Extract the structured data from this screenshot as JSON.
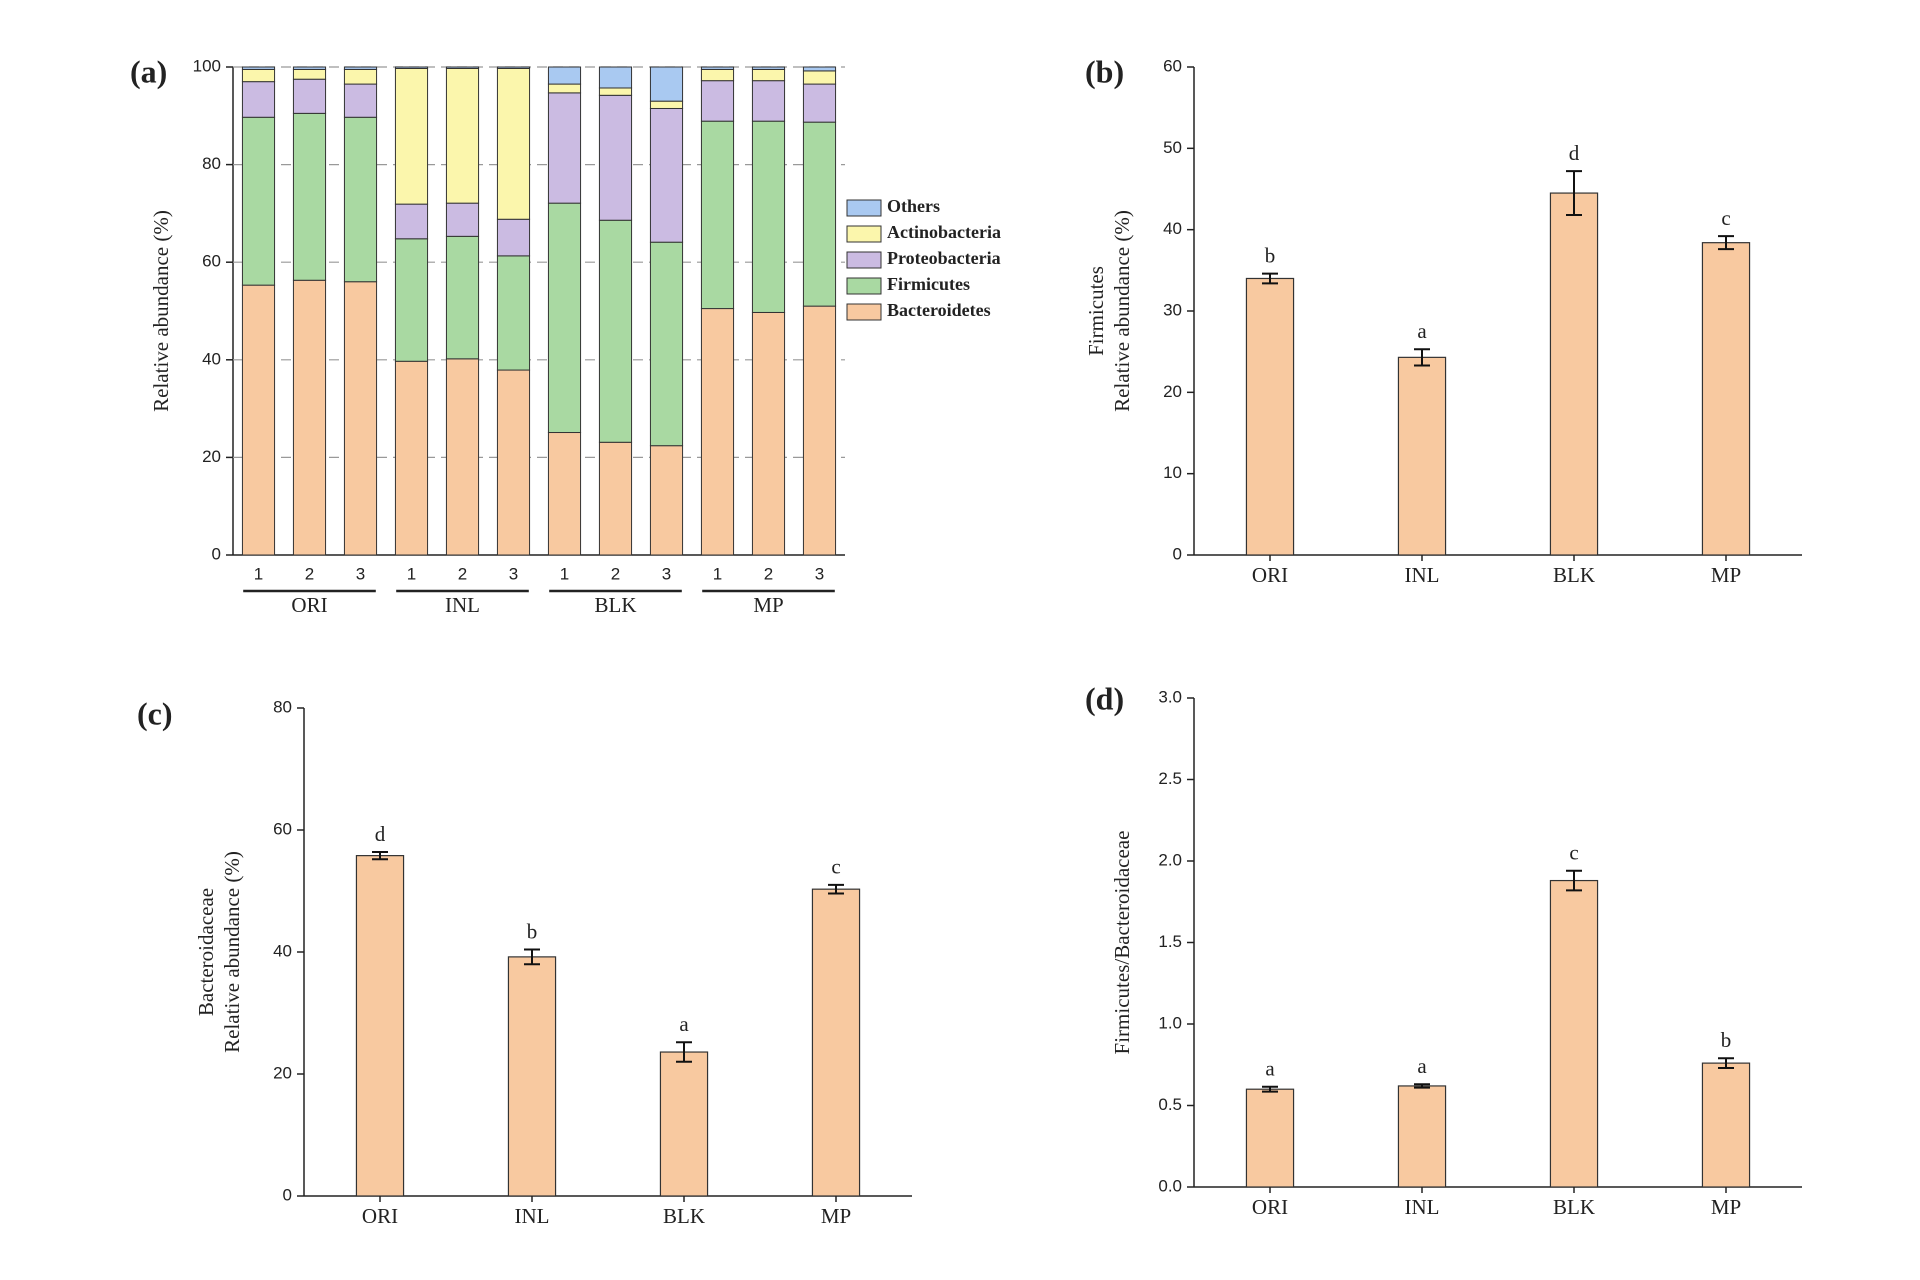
{
  "chart_data": [
    {
      "type": "stacked_bar",
      "panel": "(a)",
      "ylabel": "Relative abundance (%)",
      "categories": [
        "1",
        "2",
        "3",
        "1",
        "2",
        "3",
        "1",
        "2",
        "3",
        "1",
        "2",
        "3"
      ],
      "groups": [
        "ORI",
        "INL",
        "BLK",
        "MP"
      ],
      "series": [
        {
          "name": "Bacteroidetes",
          "color": "#f8c9a0",
          "values": [
            55.3,
            56.3,
            56,
            39.7,
            40.2,
            37.9,
            25.1,
            23.1,
            22.4,
            50.5,
            49.7,
            51
          ]
        },
        {
          "name": "Firmicutes",
          "color": "#a9d9a2",
          "values": [
            34.4,
            34.2,
            33.7,
            25.1,
            25.1,
            23.4,
            47,
            45.5,
            41.7,
            38.4,
            39.2,
            37.7
          ]
        },
        {
          "name": "Proteobacteria",
          "color": "#cbbbe2",
          "values": [
            7.3,
            7,
            6.8,
            7.1,
            6.8,
            7.5,
            22.6,
            25.6,
            27.4,
            8.3,
            8.3,
            7.8
          ]
        },
        {
          "name": "Actinobacteria",
          "color": "#fbf6ac",
          "values": [
            2.5,
            2,
            3,
            27.8,
            27.6,
            30.9,
            1.8,
            1.5,
            1.5,
            2.3,
            2.3,
            2.7
          ]
        },
        {
          "name": "Others",
          "color": "#a9c9f1",
          "values": [
            0.5,
            0.5,
            0.5,
            0.3,
            0.3,
            0.3,
            3.5,
            4.3,
            7,
            0.5,
            0.5,
            0.8
          ]
        }
      ],
      "ylim": [
        0,
        100
      ],
      "yticks": [
        0,
        20,
        40,
        60,
        80,
        100
      ],
      "grid": true,
      "legend": "right"
    },
    {
      "type": "bar",
      "panel": "(b)",
      "ylabel": [
        "Firmicutes",
        "Relative abundance (%)"
      ],
      "categories": [
        "ORI",
        "INL",
        "BLK",
        "MP"
      ],
      "values": [
        34,
        24.3,
        44.5,
        38.4
      ],
      "errors": [
        0.6,
        1,
        2.7,
        0.8
      ],
      "letters": [
        "b",
        "a",
        "d",
        "c"
      ],
      "color": "#f8c9a0",
      "ylim": [
        0,
        60
      ],
      "yticks": [
        0,
        10,
        20,
        30,
        40,
        50,
        60
      ],
      "grid": false
    },
    {
      "type": "bar",
      "panel": "(c)",
      "ylabel": [
        "Bacteroidaceae",
        "Relative abundance (%)"
      ],
      "categories": [
        "ORI",
        "INL",
        "BLK",
        "MP"
      ],
      "values": [
        55.8,
        39.2,
        23.6,
        50.3
      ],
      "errors": [
        0.6,
        1.2,
        1.6,
        0.7
      ],
      "letters": [
        "d",
        "b",
        "a",
        "c"
      ],
      "color": "#f8c9a0",
      "ylim": [
        0,
        80
      ],
      "yticks": [
        0,
        20,
        40,
        60,
        80
      ],
      "grid": false
    },
    {
      "type": "bar",
      "panel": "(d)",
      "ylabel": [
        "Firmicutes/Bacteroidaceae"
      ],
      "categories": [
        "ORI",
        "INL",
        "BLK",
        "MP"
      ],
      "values": [
        0.6,
        0.62,
        1.88,
        0.76
      ],
      "errors": [
        0.015,
        0.01,
        0.06,
        0.03
      ],
      "letters": [
        "a",
        "a",
        "c",
        "b"
      ],
      "color": "#f8c9a0",
      "ylim": [
        0,
        3
      ],
      "yticks": [
        {
          "value": 0,
          "label": "0.0"
        },
        0.5,
        {
          "value": 1,
          "label": "1.0"
        },
        1.5,
        {
          "value": 2,
          "label": "2.0"
        },
        2.5,
        {
          "value": 3,
          "label": "3.0"
        }
      ],
      "grid": false
    }
  ]
}
